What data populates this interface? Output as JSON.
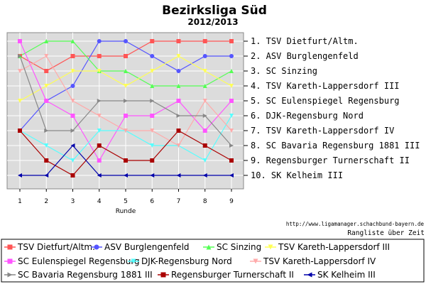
{
  "chart_data": {
    "type": "line",
    "title": "Bezirksliga Süd",
    "subtitle": "2012/2013",
    "xlabel": "Runde",
    "x": [
      1,
      2,
      3,
      4,
      5,
      6,
      7,
      8,
      9
    ],
    "ylim": [
      1,
      10
    ],
    "y_inverted": true,
    "grid": true,
    "legend_placement": "bottom",
    "source_text": "http://www.ligamanager.schachbund-bayern.de",
    "caption": "Rangliste über Zeit",
    "rank_labels": [
      "1.  TSV Dietfurt/Altm.",
      "2.  ASV Burglengenfeld",
      "3.  SC Sinzing",
      "4.  TSV Kareth-Lappersdorf III",
      "5.  SC Eulenspiegel Regensburg",
      "6.  DJK-Regensburg Nord",
      "7.  TSV Kareth-Lappersdorf IV",
      "8.  SC Bavaria Regensburg 1881 III",
      "9.  Regensburger Turnerschaft II",
      "10. SK Kelheim III"
    ],
    "series": [
      {
        "name": "TSV Dietfurt/Altm.",
        "color": "#ff5555",
        "marker": "square",
        "values": [
          2,
          3,
          2,
          2,
          2,
          1,
          1,
          1,
          1
        ]
      },
      {
        "name": "ASV Burglengenfeld",
        "color": "#5555ff",
        "marker": "circle",
        "values": [
          7,
          5,
          4,
          1,
          1,
          2,
          3,
          2,
          2
        ]
      },
      {
        "name": "SC Sinzing",
        "color": "#55ff55",
        "marker": "triangle-up",
        "values": [
          2,
          1,
          1,
          3,
          3,
          4,
          4,
          4,
          3
        ]
      },
      {
        "name": "TSV Kareth-Lappersdorf III",
        "color": "#ffff55",
        "marker": "triangle-down",
        "values": [
          5,
          4,
          3,
          3,
          4,
          3,
          2,
          3,
          4
        ]
      },
      {
        "name": "SC Eulenspiegel Regensburg",
        "color": "#ff55ff",
        "marker": "square",
        "values": [
          1,
          5,
          6,
          9,
          6,
          6,
          5,
          7,
          5
        ]
      },
      {
        "name": "DJK-Regensburg Nord",
        "color": "#55ffff",
        "marker": "triangle-down",
        "values": [
          7,
          8,
          9,
          7,
          7,
          8,
          8,
          9,
          6
        ]
      },
      {
        "name": "TSV Kareth-Lappersdorf IV",
        "color": "#ffaaaa",
        "marker": "triangle-down",
        "values": [
          3,
          2,
          5,
          6,
          7,
          7,
          8,
          5,
          7
        ]
      },
      {
        "name": "SC Bavaria Regensburg 1881 III",
        "color": "#888888",
        "marker": "triangle-right",
        "values": [
          2,
          7,
          7,
          5,
          5,
          5,
          6,
          6,
          8
        ]
      },
      {
        "name": "Regensburger Turnerschaft II",
        "color": "#aa0000",
        "marker": "square",
        "values": [
          7,
          9,
          10,
          8,
          9,
          9,
          7,
          8,
          9
        ]
      },
      {
        "name": "SK Kelheim III",
        "color": "#0000aa",
        "marker": "triangle-left",
        "values": [
          10,
          10,
          8,
          10,
          10,
          10,
          10,
          10,
          10
        ]
      }
    ]
  }
}
